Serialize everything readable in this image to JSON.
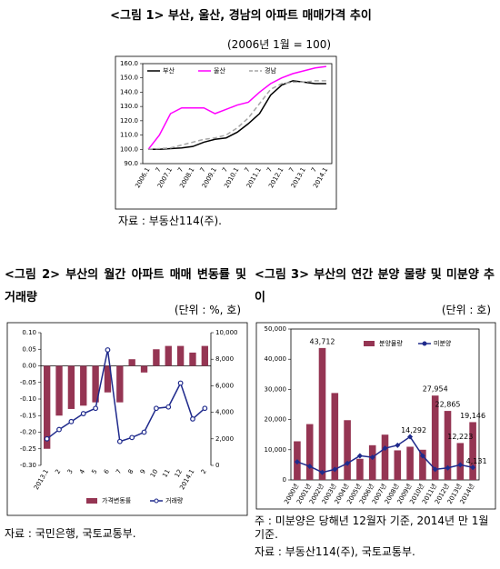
{
  "chart_data": [
    {
      "type": "line",
      "title": "<그림 1> 부산, 울산, 경남의 아파트 매매가격 추이",
      "subtitle": "(2006년 1월 = 100)",
      "notes": [
        "자료 : 부동산114(주)."
      ],
      "categories": [
        "2006.1",
        "7",
        "2007.1",
        "7",
        "2008.1",
        "7",
        "2009.1",
        "7",
        "2010.1",
        "7",
        "2011.1",
        "7",
        "2012.1",
        "7",
        "2013.1",
        "7",
        "2014.1"
      ],
      "series": [
        {
          "name": "부산",
          "color": "#000000",
          "values": [
            100,
            100,
            100.5,
            101,
            102,
            105,
            107,
            108,
            112,
            118,
            125,
            138,
            145,
            148,
            147,
            146,
            146
          ]
        },
        {
          "name": "울산",
          "color": "#ff00ff",
          "values": [
            100,
            110,
            125,
            129,
            129,
            129,
            125,
            128,
            131,
            133,
            140,
            146,
            150,
            153,
            155,
            157,
            158
          ]
        },
        {
          "name": "경남",
          "color": "#a6a6a6",
          "dash": true,
          "values": [
            100,
            100.5,
            101,
            103,
            105,
            107,
            108,
            110,
            115,
            122,
            132,
            142,
            146,
            147,
            147,
            148,
            148
          ]
        }
      ],
      "ylim": [
        90,
        160
      ],
      "yticks": [
        {
          "value": 90,
          "label": "90.0"
        },
        {
          "value": 100,
          "label": "100.0"
        },
        {
          "value": 110,
          "label": "110.0"
        },
        {
          "value": 120,
          "label": "120.0"
        },
        {
          "value": 130,
          "label": "130.0"
        },
        {
          "value": 140,
          "label": "140.0"
        },
        {
          "value": 150,
          "label": "150.0"
        },
        {
          "value": 160,
          "label": "160.0"
        }
      ]
    },
    {
      "type": "combo",
      "title": "<그림 2> 부산의 월간 아파트 매매 변동률 및 거래량",
      "subtitle": "(단위 : %, 호)",
      "notes": [
        "자료 : 국민은행, 국토교통부."
      ],
      "categories": [
        "2013.1",
        "2",
        "3",
        "4",
        "5",
        "6",
        "7",
        "8",
        "9",
        "10",
        "11",
        "12",
        "2014.1",
        "2"
      ],
      "series": [
        {
          "name": "가격변동률",
          "type": "bar",
          "color": "#953553",
          "values": [
            -0.25,
            -0.15,
            -0.13,
            -0.12,
            -0.11,
            -0.08,
            -0.11,
            0.02,
            -0.02,
            0.05,
            0.06,
            0.06,
            0.04,
            0.06
          ]
        },
        {
          "name": "거래량",
          "type": "line",
          "axis": "y2",
          "color": "#1f2a8c",
          "marker": "circle",
          "values": [
            2000,
            2700,
            3300,
            3900,
            4300,
            8700,
            1800,
            2100,
            2500,
            4300,
            4400,
            6200,
            3500,
            4300
          ]
        }
      ],
      "ylim": [
        -0.3,
        0.1
      ],
      "yticks": [
        {
          "value": 0.1,
          "label": "0.10"
        },
        0.05,
        {
          "value": 0,
          "label": "0.00"
        },
        -0.05,
        {
          "value": -0.1,
          "label": "-0.10"
        },
        -0.15,
        {
          "value": -0.2,
          "label": "-0.20"
        },
        -0.25,
        {
          "value": -0.3,
          "label": "-0.30"
        }
      ],
      "y2lim": [
        0,
        10000
      ],
      "y2ticks": [
        0,
        {
          "value": 2000,
          "label": "2,000"
        },
        {
          "value": 4000,
          "label": "4,000"
        },
        {
          "value": 6000,
          "label": "6,000"
        },
        {
          "value": 8000,
          "label": "8,000"
        },
        {
          "value": 10000,
          "label": "10,000"
        }
      ]
    },
    {
      "type": "combo",
      "title": "<그림 3> 부산의 연간 분양 물량 및 미분양 추이",
      "subtitle": "(단위 : 호)",
      "notes": [
        "주 : 미분양은 당해년 12월자 기준, 2014년 만 1월 기준.",
        "자료 : 부동산114(주), 국토교통부."
      ],
      "categories": [
        "2000년",
        "2001년",
        "2002년",
        "2003년",
        "2004년",
        "2005년",
        "2006년",
        "2007년",
        "2008년",
        "2009년",
        "2010년",
        "2011년",
        "2012년",
        "2013년",
        "2014년"
      ],
      "series": [
        {
          "name": "분양물량",
          "type": "bar",
          "color": "#953553",
          "values": [
            12800,
            18500,
            43712,
            28800,
            19800,
            7000,
            11500,
            15000,
            9800,
            11000,
            10000,
            27954,
            22865,
            12223,
            19146
          ],
          "value_labels": [
            null,
            null,
            "43,712",
            null,
            null,
            null,
            null,
            null,
            null,
            null,
            null,
            "27,954",
            "22,865",
            "12,223",
            "19,146"
          ]
        },
        {
          "name": "미분양",
          "type": "line",
          "color": "#1f2a8c",
          "marker": "diamond",
          "values": [
            6000,
            4500,
            2500,
            3500,
            5500,
            8000,
            7500,
            10500,
            11500,
            14292,
            8000,
            3500,
            4000,
            5000,
            4131
          ],
          "value_labels": [
            null,
            null,
            null,
            null,
            null,
            null,
            null,
            null,
            null,
            "14,292",
            null,
            null,
            null,
            null,
            "4,131"
          ]
        }
      ],
      "ylim": [
        0,
        50000
      ],
      "yticks": [
        0,
        {
          "value": 10000,
          "label": "10,000"
        },
        {
          "value": 20000,
          "label": "20,000"
        },
        {
          "value": 30000,
          "label": "30,000"
        },
        {
          "value": 40000,
          "label": "40,000"
        },
        {
          "value": 50000,
          "label": "50,000"
        }
      ]
    }
  ]
}
